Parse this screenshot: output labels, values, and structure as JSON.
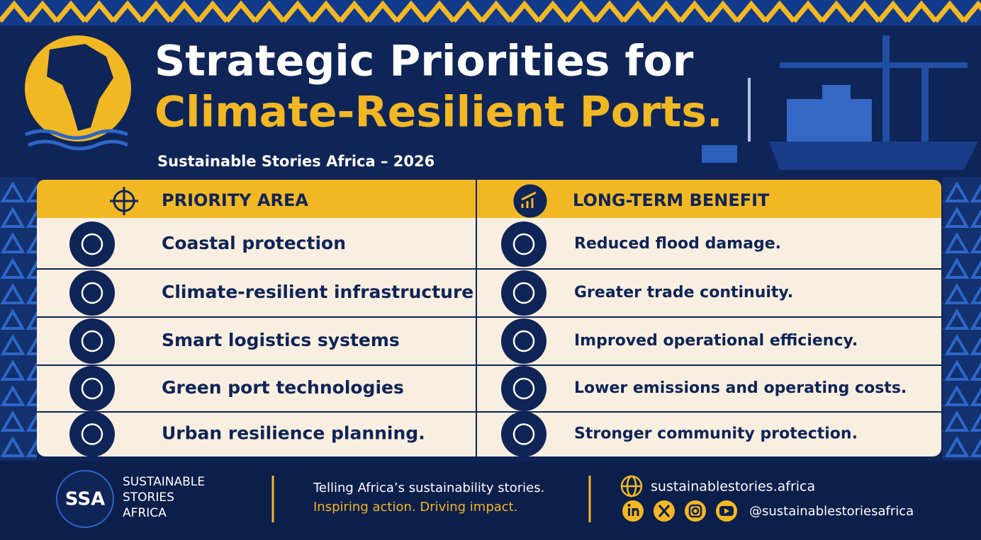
{
  "header": {
    "title_line1": "Strategic Priorities for",
    "title_line2": "Climate-Resilient Ports.",
    "subtitle": "Sustainable Stories Africa – 2026"
  },
  "table": {
    "headers": [
      "PRIORITY AREA",
      "LONG-TERM BENEFIT"
    ],
    "rows": [
      [
        "Coastal protection",
        "Reduced flood damage."
      ],
      [
        "Climate-resilient infrastructure",
        "Greater trade continuity."
      ],
      [
        "Smart logistics systems",
        "Improved operational efficiency."
      ],
      [
        "Green port technologies",
        "Lower emissions and operating costs."
      ],
      [
        "Urban resilience planning.",
        "Stronger community protection."
      ]
    ]
  },
  "footer": {
    "logo": "SSA",
    "brand": [
      "SUSTAINABLE",
      "STORIES",
      "AFRICA"
    ],
    "tagline": [
      "Telling Africa’s sustainability stories.",
      "Inspiring action. Driving impact."
    ],
    "website": "sustainablestories.africa",
    "handle": "@sustainablestoriesafrica"
  }
}
